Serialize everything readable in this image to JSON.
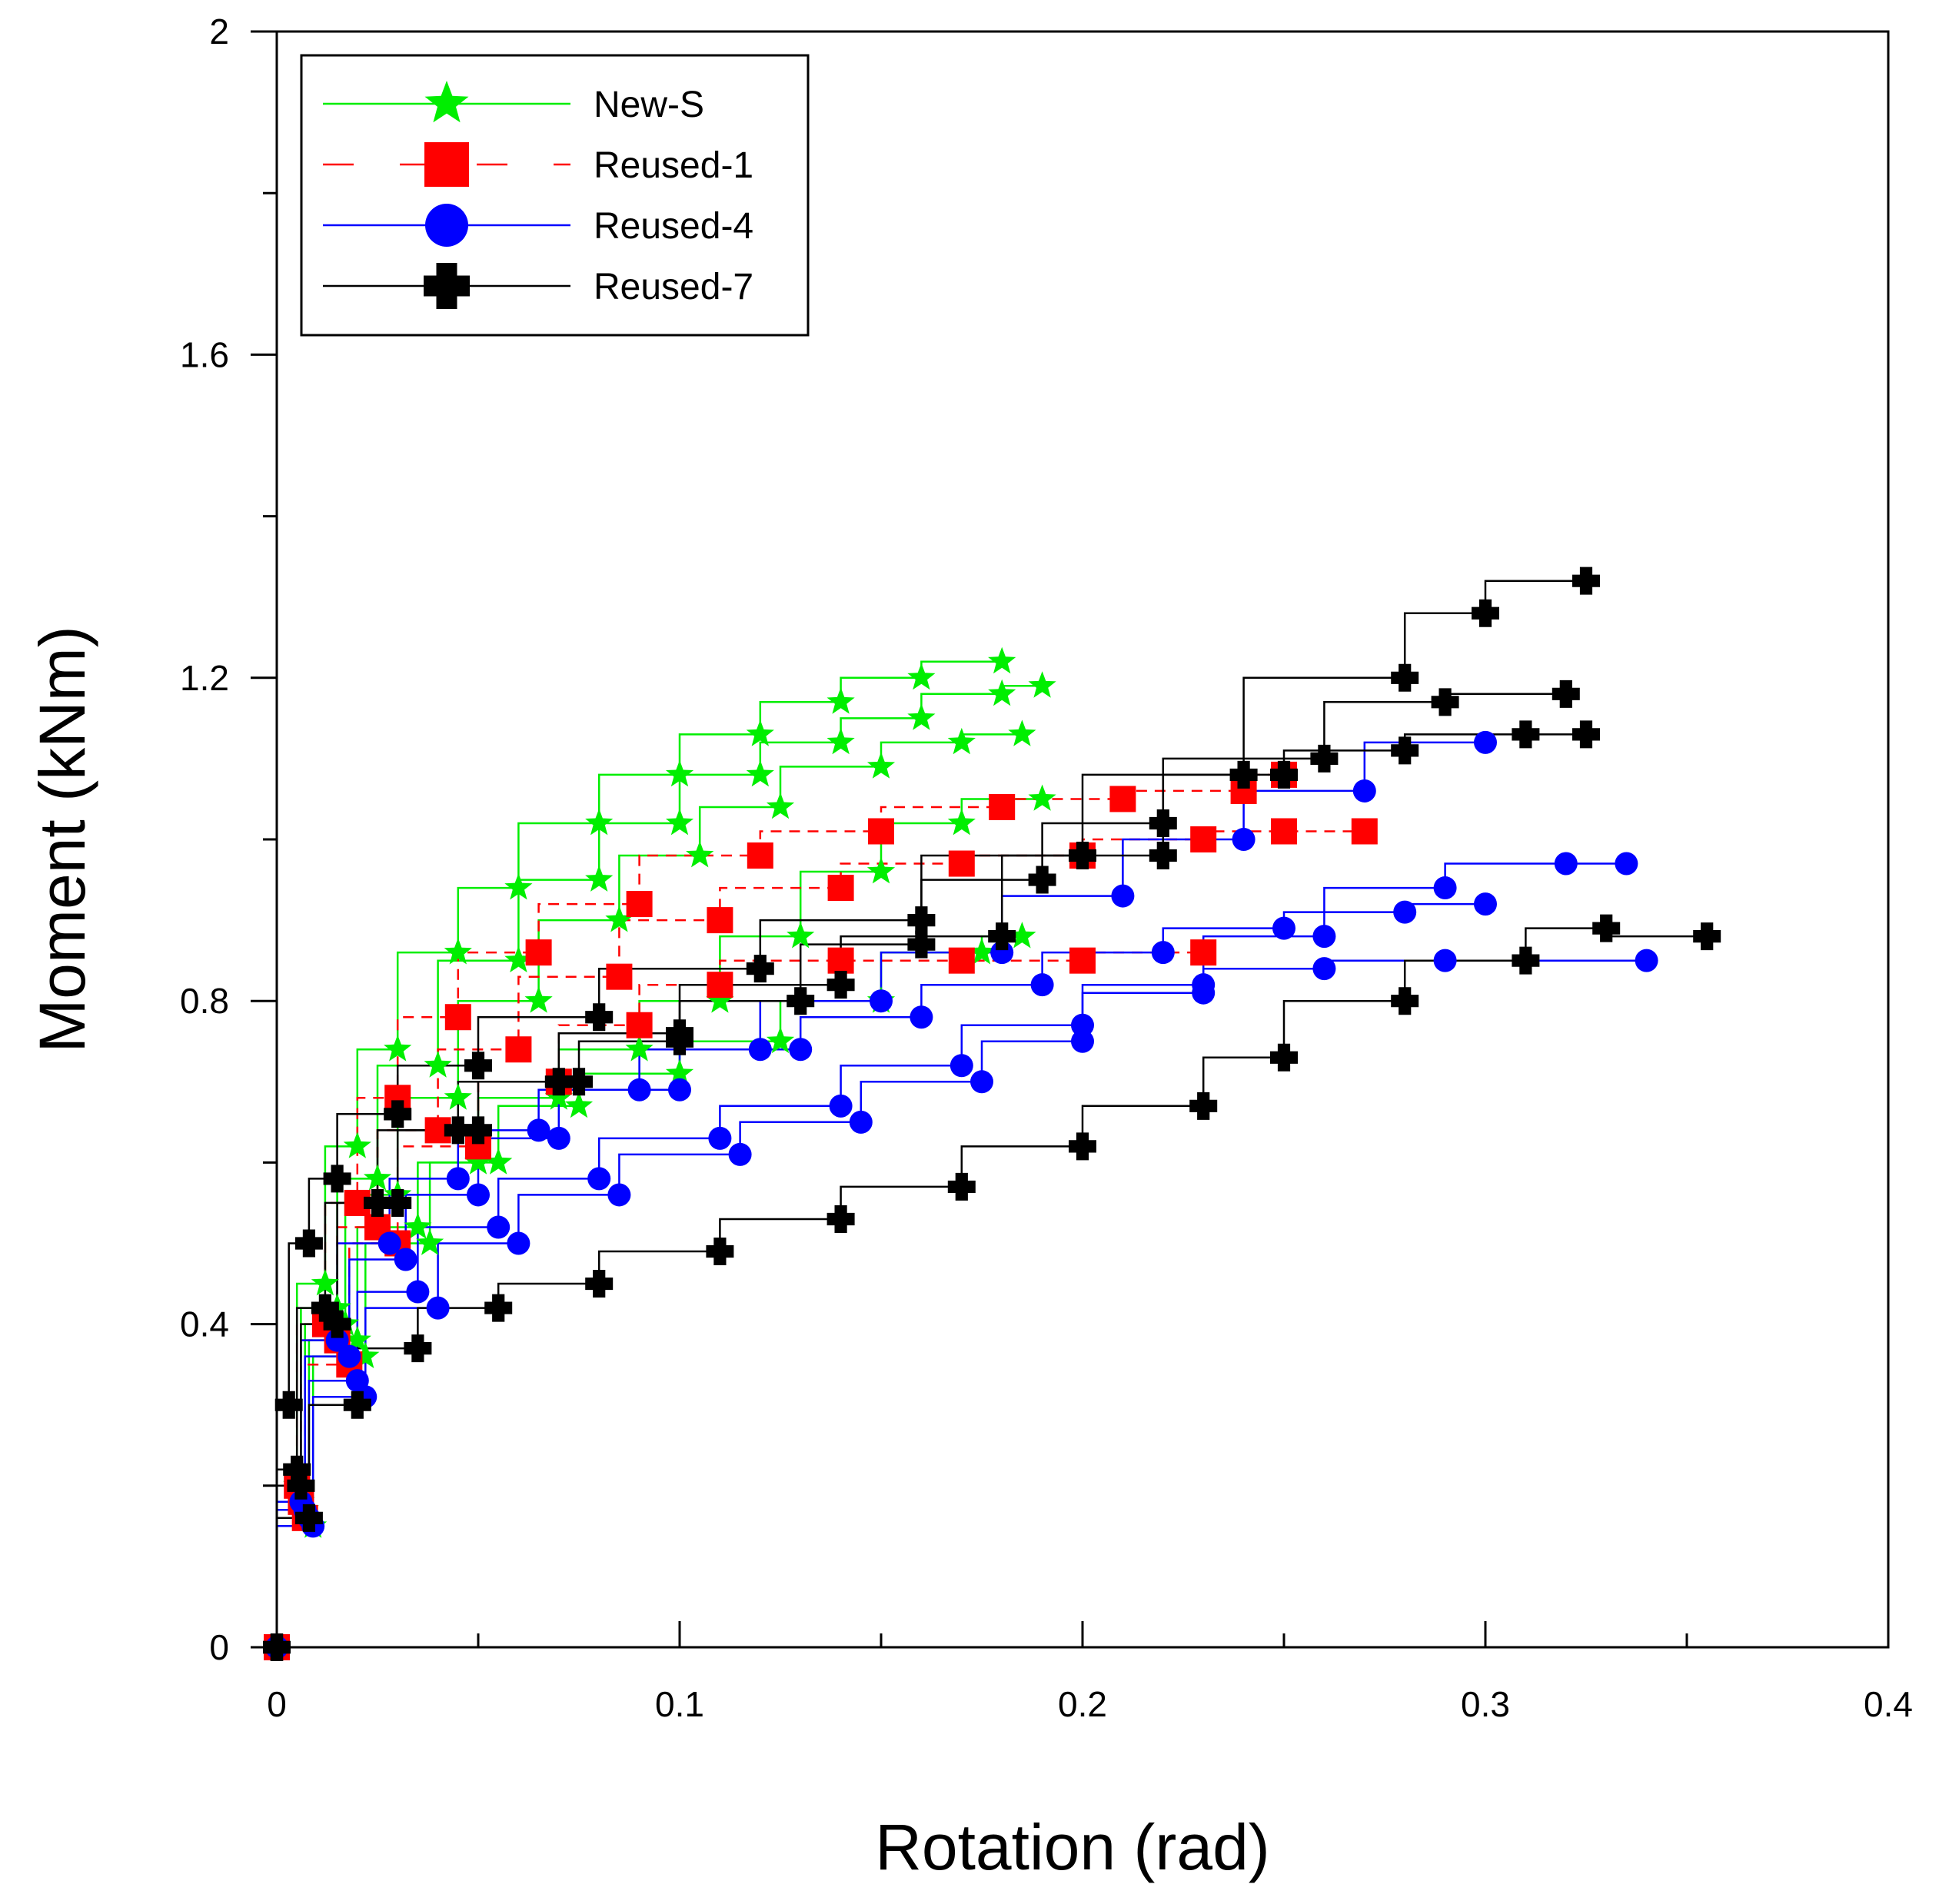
{
  "chart_data": {
    "type": "line",
    "title": "",
    "xlabel": "Rotation (rad)",
    "ylabel": "Moment (kNm)",
    "xlim": [
      0,
      0.4
    ],
    "ylim": [
      0,
      2
    ],
    "x_ticks": [
      0,
      0.1,
      0.2,
      0.3,
      0.4
    ],
    "x_tick_labels": [
      "0",
      "0.1",
      "0.2",
      "0.3",
      "0.4"
    ],
    "y_ticks": [
      0,
      0.4,
      0.8,
      1.2,
      1.6,
      2
    ],
    "y_tick_labels": [
      "0",
      "0.4",
      "0.8",
      "1.2",
      "1.6",
      "2"
    ],
    "grid": false,
    "legend_position": "top-left",
    "series": [
      {
        "name": "New-S",
        "color": "#00ee00",
        "marker": "star",
        "line": "solid",
        "curves": [
          [
            [
              0,
              0
            ],
            [
              0.005,
              0.2
            ],
            [
              0.012,
              0.45
            ],
            [
              0.02,
              0.62
            ],
            [
              0.03,
              0.74
            ],
            [
              0.045,
              0.86
            ],
            [
              0.06,
              0.94
            ],
            [
              0.08,
              1.02
            ],
            [
              0.1,
              1.08
            ],
            [
              0.12,
              1.13
            ],
            [
              0.14,
              1.17
            ],
            [
              0.16,
              1.2
            ],
            [
              0.18,
              1.22
            ]
          ],
          [
            [
              0,
              0
            ],
            [
              0.006,
              0.18
            ],
            [
              0.015,
              0.42
            ],
            [
              0.025,
              0.58
            ],
            [
              0.04,
              0.72
            ],
            [
              0.06,
              0.85
            ],
            [
              0.08,
              0.95
            ],
            [
              0.1,
              1.02
            ],
            [
              0.12,
              1.08
            ],
            [
              0.14,
              1.12
            ],
            [
              0.16,
              1.15
            ],
            [
              0.18,
              1.18
            ],
            [
              0.19,
              1.19
            ]
          ],
          [
            [
              0,
              0
            ],
            [
              0.007,
              0.17
            ],
            [
              0.017,
              0.4
            ],
            [
              0.03,
              0.56
            ],
            [
              0.045,
              0.68
            ],
            [
              0.065,
              0.8
            ],
            [
              0.085,
              0.9
            ],
            [
              0.105,
              0.98
            ],
            [
              0.125,
              1.04
            ],
            [
              0.15,
              1.09
            ],
            [
              0.17,
              1.12
            ],
            [
              0.185,
              1.13
            ]
          ],
          [
            [
              0,
              0
            ],
            [
              0.008,
              0.16
            ],
            [
              0.02,
              0.38
            ],
            [
              0.035,
              0.52
            ],
            [
              0.05,
              0.6
            ],
            [
              0.07,
              0.68
            ],
            [
              0.09,
              0.74
            ],
            [
              0.11,
              0.8
            ],
            [
              0.13,
              0.88
            ],
            [
              0.15,
              0.96
            ],
            [
              0.17,
              1.02
            ],
            [
              0.19,
              1.05
            ]
          ],
          [
            [
              0,
              0
            ],
            [
              0.009,
              0.15
            ],
            [
              0.022,
              0.36
            ],
            [
              0.038,
              0.5
            ],
            [
              0.055,
              0.6
            ],
            [
              0.075,
              0.67
            ],
            [
              0.1,
              0.71
            ],
            [
              0.125,
              0.75
            ],
            [
              0.15,
              0.8
            ],
            [
              0.175,
              0.86
            ],
            [
              0.185,
              0.88
            ]
          ]
        ]
      },
      {
        "name": "Reused-1",
        "color": "#ff0000",
        "marker": "square",
        "line": "dashed",
        "curves": [
          [
            [
              0,
              0
            ],
            [
              0.005,
              0.2
            ],
            [
              0.012,
              0.4
            ],
            [
              0.02,
              0.55
            ],
            [
              0.03,
              0.68
            ],
            [
              0.045,
              0.78
            ],
            [
              0.065,
              0.86
            ],
            [
              0.09,
              0.92
            ],
            [
              0.12,
              0.98
            ],
            [
              0.15,
              1.01
            ],
            [
              0.18,
              1.04
            ],
            [
              0.21,
              1.05
            ],
            [
              0.24,
              1.06
            ],
            [
              0.25,
              1.08
            ]
          ],
          [
            [
              0,
              0
            ],
            [
              0.006,
              0.18
            ],
            [
              0.015,
              0.38
            ],
            [
              0.025,
              0.52
            ],
            [
              0.04,
              0.64
            ],
            [
              0.06,
              0.74
            ],
            [
              0.085,
              0.83
            ],
            [
              0.11,
              0.9
            ],
            [
              0.14,
              0.94
            ],
            [
              0.17,
              0.97
            ],
            [
              0.2,
              0.98
            ],
            [
              0.23,
              1.0
            ],
            [
              0.25,
              1.01
            ],
            [
              0.27,
              1.01
            ]
          ],
          [
            [
              0,
              0
            ],
            [
              0.007,
              0.16
            ],
            [
              0.018,
              0.35
            ],
            [
              0.03,
              0.5
            ],
            [
              0.05,
              0.62
            ],
            [
              0.07,
              0.7
            ],
            [
              0.09,
              0.77
            ],
            [
              0.11,
              0.82
            ],
            [
              0.14,
              0.85
            ],
            [
              0.17,
              0.85
            ],
            [
              0.2,
              0.85
            ],
            [
              0.23,
              0.86
            ]
          ]
        ]
      },
      {
        "name": "Reused-4",
        "color": "#0000ff",
        "marker": "circle",
        "line": "solid",
        "curves": [
          [
            [
              0,
              0
            ],
            [
              0.006,
              0.18
            ],
            [
              0.015,
              0.38
            ],
            [
              0.028,
              0.5
            ],
            [
              0.045,
              0.58
            ],
            [
              0.065,
              0.64
            ],
            [
              0.09,
              0.69
            ],
            [
              0.12,
              0.74
            ],
            [
              0.15,
              0.8
            ],
            [
              0.18,
              0.86
            ],
            [
              0.21,
              0.93
            ],
            [
              0.24,
              1.0
            ],
            [
              0.27,
              1.06
            ],
            [
              0.3,
              1.12
            ]
          ],
          [
            [
              0,
              0
            ],
            [
              0.008,
              0.16
            ],
            [
              0.02,
              0.33
            ],
            [
              0.035,
              0.44
            ],
            [
              0.055,
              0.52
            ],
            [
              0.08,
              0.58
            ],
            [
              0.11,
              0.63
            ],
            [
              0.14,
              0.67
            ],
            [
              0.17,
              0.72
            ],
            [
              0.2,
              0.77
            ],
            [
              0.23,
              0.81
            ],
            [
              0.26,
              0.84
            ],
            [
              0.29,
              0.85
            ],
            [
              0.34,
              0.85
            ]
          ],
          [
            [
              0,
              0
            ],
            [
              0.007,
              0.17
            ],
            [
              0.018,
              0.36
            ],
            [
              0.032,
              0.48
            ],
            [
              0.05,
              0.56
            ],
            [
              0.07,
              0.63
            ],
            [
              0.1,
              0.69
            ],
            [
              0.13,
              0.74
            ],
            [
              0.16,
              0.78
            ],
            [
              0.19,
              0.82
            ],
            [
              0.22,
              0.86
            ],
            [
              0.25,
              0.89
            ],
            [
              0.28,
              0.91
            ],
            [
              0.3,
              0.92
            ]
          ],
          [
            [
              0,
              0
            ],
            [
              0.009,
              0.15
            ],
            [
              0.022,
              0.31
            ],
            [
              0.04,
              0.42
            ],
            [
              0.06,
              0.5
            ],
            [
              0.085,
              0.56
            ],
            [
              0.115,
              0.61
            ],
            [
              0.145,
              0.65
            ],
            [
              0.175,
              0.7
            ],
            [
              0.2,
              0.75
            ],
            [
              0.23,
              0.82
            ],
            [
              0.26,
              0.88
            ],
            [
              0.29,
              0.94
            ],
            [
              0.32,
              0.97
            ],
            [
              0.335,
              0.97
            ]
          ]
        ]
      },
      {
        "name": "Reused-7",
        "color": "#000000",
        "marker": "plus",
        "line": "solid",
        "curves": [
          [
            [
              0,
              0
            ],
            [
              0.003,
              0.3
            ],
            [
              0.008,
              0.5
            ],
            [
              0.015,
              0.58
            ],
            [
              0.03,
              0.66
            ],
            [
              0.05,
              0.72
            ],
            [
              0.08,
              0.78
            ],
            [
              0.12,
              0.84
            ],
            [
              0.16,
              0.9
            ],
            [
              0.2,
              0.98
            ],
            [
              0.24,
              1.08
            ],
            [
              0.28,
              1.2
            ],
            [
              0.3,
              1.28
            ],
            [
              0.325,
              1.32
            ]
          ],
          [
            [
              0,
              0
            ],
            [
              0.005,
              0.22
            ],
            [
              0.012,
              0.42
            ],
            [
              0.025,
              0.55
            ],
            [
              0.045,
              0.64
            ],
            [
              0.07,
              0.7
            ],
            [
              0.1,
              0.76
            ],
            [
              0.14,
              0.82
            ],
            [
              0.18,
              0.88
            ],
            [
              0.22,
              0.98
            ],
            [
              0.26,
              1.1
            ],
            [
              0.29,
              1.17
            ],
            [
              0.32,
              1.18
            ]
          ],
          [
            [
              0,
              0
            ],
            [
              0.008,
              0.16
            ],
            [
              0.02,
              0.3
            ],
            [
              0.035,
              0.37
            ],
            [
              0.055,
              0.42
            ],
            [
              0.08,
              0.45
            ],
            [
              0.11,
              0.49
            ],
            [
              0.14,
              0.53
            ],
            [
              0.17,
              0.57
            ],
            [
              0.2,
              0.62
            ],
            [
              0.23,
              0.67
            ],
            [
              0.25,
              0.73
            ],
            [
              0.28,
              0.8
            ],
            [
              0.31,
              0.85
            ],
            [
              0.33,
              0.89
            ],
            [
              0.355,
              0.88
            ]
          ],
          [
            [
              0,
              0
            ],
            [
              0.006,
              0.2
            ],
            [
              0.015,
              0.4
            ],
            [
              0.03,
              0.55
            ],
            [
              0.05,
              0.64
            ],
            [
              0.075,
              0.7
            ],
            [
              0.1,
              0.75
            ],
            [
              0.13,
              0.8
            ],
            [
              0.16,
              0.87
            ],
            [
              0.19,
              0.95
            ],
            [
              0.22,
              1.02
            ],
            [
              0.25,
              1.08
            ],
            [
              0.28,
              1.11
            ],
            [
              0.31,
              1.13
            ],
            [
              0.325,
              1.13
            ]
          ]
        ]
      }
    ]
  }
}
